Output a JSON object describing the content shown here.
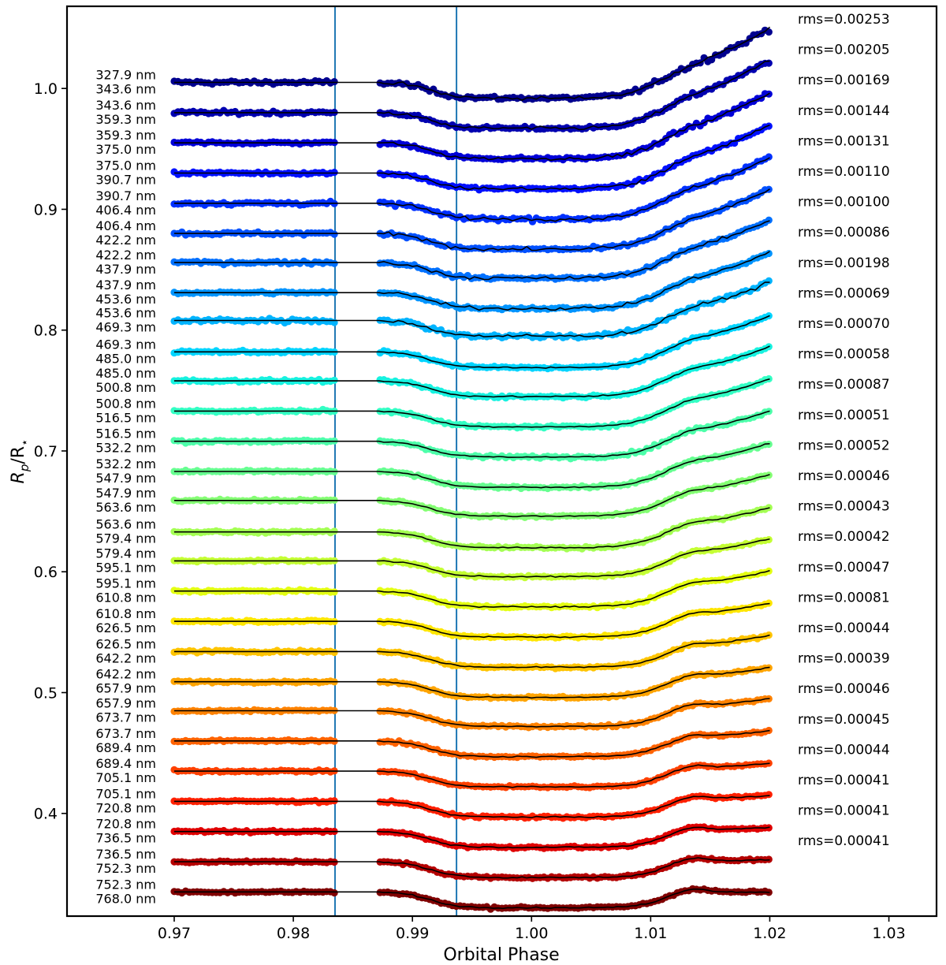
{
  "chart_data": {
    "type": "scatter",
    "xlabel": "Orbital Phase",
    "ylabel": "Rp/R⋆",
    "ylabel_main": "R",
    "ylabel_sub1": "p",
    "ylabel_sep": "/R",
    "ylabel_sub2": "⋆",
    "xlim": [
      0.961,
      1.034
    ],
    "ylim": [
      0.315,
      1.068
    ],
    "xticks": [
      0.97,
      0.98,
      0.99,
      1.0,
      1.01,
      1.02,
      1.03
    ],
    "xtick_labels": [
      "0.97",
      "0.98",
      "0.99",
      "1.00",
      "1.01",
      "1.02",
      "1.03"
    ],
    "yticks": [
      0.4,
      0.5,
      0.6,
      0.7,
      0.8,
      0.9,
      1.0
    ],
    "ytick_labels": [
      "0.4",
      "0.5",
      "0.6",
      "0.7",
      "0.8",
      "0.9",
      "1.0"
    ],
    "vlines": [
      0.9835,
      0.9937
    ],
    "vline_color": "#1f77b4",
    "phase_range": [
      0.97,
      1.02
    ],
    "gap": [
      0.9835,
      0.9872
    ],
    "series": [
      {
        "band_top": "327.9 nm",
        "band_bottom": "343.6 nm",
        "rms": "rms=0.00253",
        "offset": 1.005,
        "color": "#00008f"
      },
      {
        "band_top": "343.6 nm",
        "band_bottom": "359.3 nm",
        "rms": "rms=0.00205",
        "offset": 0.98,
        "color": "#0000b0"
      },
      {
        "band_top": "359.3 nm",
        "band_bottom": "375.0 nm",
        "rms": "rms=0.00169",
        "offset": 0.955,
        "color": "#0000d8"
      },
      {
        "band_top": "375.0 nm",
        "band_bottom": "390.7 nm",
        "rms": "rms=0.00144",
        "offset": 0.93,
        "color": "#0010ff"
      },
      {
        "band_top": "390.7 nm",
        "band_bottom": "406.4 nm",
        "rms": "rms=0.00131",
        "offset": 0.905,
        "color": "#0030ff"
      },
      {
        "band_top": "406.4 nm",
        "band_bottom": "422.2 nm",
        "rms": "rms=0.00110",
        "offset": 0.88,
        "color": "#0050ff"
      },
      {
        "band_top": "422.2 nm",
        "band_bottom": "437.9 nm",
        "rms": "rms=0.00100",
        "offset": 0.856,
        "color": "#0070ff"
      },
      {
        "band_top": "437.9 nm",
        "band_bottom": "453.6 nm",
        "rms": "rms=0.00086",
        "offset": 0.831,
        "color": "#0094ff"
      },
      {
        "band_top": "453.6 nm",
        "band_bottom": "469.3 nm",
        "rms": "rms=0.00198",
        "offset": 0.808,
        "color": "#00b4ff"
      },
      {
        "band_top": "469.3 nm",
        "band_bottom": "485.0 nm",
        "rms": "rms=0.00069",
        "offset": 0.782,
        "color": "#00d4ff"
      },
      {
        "band_top": "485.0 nm",
        "band_bottom": "500.8 nm",
        "rms": "rms=0.00070",
        "offset": 0.758,
        "color": "#16f2e0"
      },
      {
        "band_top": "500.8 nm",
        "band_bottom": "516.5 nm",
        "rms": "rms=0.00058",
        "offset": 0.733,
        "color": "#33ffc4"
      },
      {
        "band_top": "516.5 nm",
        "band_bottom": "532.2 nm",
        "rms": "rms=0.00087",
        "offset": 0.708,
        "color": "#4dffaa"
      },
      {
        "band_top": "532.2 nm",
        "band_bottom": "547.9 nm",
        "rms": "rms=0.00051",
        "offset": 0.683,
        "color": "#66ff90"
      },
      {
        "band_top": "547.9 nm",
        "band_bottom": "563.6 nm",
        "rms": "rms=0.00052",
        "offset": 0.659,
        "color": "#84ff73"
      },
      {
        "band_top": "563.6 nm",
        "band_bottom": "579.4 nm",
        "rms": "rms=0.00046",
        "offset": 0.633,
        "color": "#a4ff53"
      },
      {
        "band_top": "579.4 nm",
        "band_bottom": "595.1 nm",
        "rms": "rms=0.00043",
        "offset": 0.609,
        "color": "#c4ff33"
      },
      {
        "band_top": "595.1 nm",
        "band_bottom": "610.8 nm",
        "rms": "rms=0.00042",
        "offset": 0.584,
        "color": "#e4ff13"
      },
      {
        "band_top": "610.8 nm",
        "band_bottom": "626.5 nm",
        "rms": "rms=0.00047",
        "offset": 0.559,
        "color": "#ffe600"
      },
      {
        "band_top": "626.5 nm",
        "band_bottom": "642.2 nm",
        "rms": "rms=0.00081",
        "offset": 0.534,
        "color": "#ffc400"
      },
      {
        "band_top": "642.2 nm",
        "band_bottom": "657.9 nm",
        "rms": "rms=0.00044",
        "offset": 0.509,
        "color": "#ffa400"
      },
      {
        "band_top": "657.9 nm",
        "band_bottom": "673.7 nm",
        "rms": "rms=0.00039",
        "offset": 0.485,
        "color": "#ff8200"
      },
      {
        "band_top": "673.7 nm",
        "band_bottom": "689.4 nm",
        "rms": "rms=0.00046",
        "offset": 0.46,
        "color": "#ff6200"
      },
      {
        "band_top": "689.4 nm",
        "band_bottom": "705.1 nm",
        "rms": "rms=0.00045",
        "offset": 0.435,
        "color": "#ff4000"
      },
      {
        "band_top": "705.1 nm",
        "band_bottom": "720.8 nm",
        "rms": "rms=0.00044",
        "offset": 0.41,
        "color": "#ff2000"
      },
      {
        "band_top": "720.8 nm",
        "band_bottom": "736.5 nm",
        "rms": "rms=0.00041",
        "offset": 0.385,
        "color": "#e00000"
      },
      {
        "band_top": "736.5 nm",
        "band_bottom": "752.3 nm",
        "rms": "rms=0.00041",
        "offset": 0.36,
        "color": "#b40000"
      },
      {
        "band_top": "752.3 nm",
        "band_bottom": "768.0 nm",
        "rms": "rms=0.00041",
        "offset": 0.335,
        "color": "#800000"
      }
    ]
  }
}
